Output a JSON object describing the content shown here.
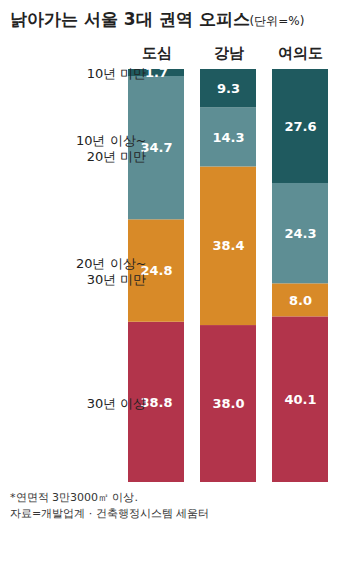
{
  "chart_data": {
    "type": "bar",
    "title": "낡아가는 서울 3대 권역 오피스",
    "subtitle": "(단위=%)",
    "stacked": true,
    "data_labels": true,
    "tick_labels": "x",
    "categories": [
      "도심",
      "강남",
      "여의도"
    ],
    "ylim": [
      0,
      100
    ],
    "series": [
      {
        "name": "10년 미만",
        "color": "#1f5a5f",
        "values": [
          1.7,
          9.3,
          27.6
        ],
        "value_labels": [
          "1.7",
          "9.3",
          "27.6"
        ]
      },
      {
        "name": "10년 이상~20년 미만",
        "color": "#5e8e94",
        "values": [
          34.7,
          14.3,
          24.3
        ],
        "value_labels": [
          "34.7",
          "14.3",
          "24.3"
        ]
      },
      {
        "name": "20년 이상~30년 미만",
        "color": "#d88a28",
        "values": [
          24.8,
          38.4,
          8.0
        ],
        "value_labels": [
          "24.8",
          "38.4",
          "8.0"
        ]
      },
      {
        "name": "30년 이상",
        "color": "#b2344b",
        "values": [
          38.8,
          38.0,
          40.1
        ],
        "value_labels": [
          "38.8",
          "38.0",
          "40.1"
        ]
      }
    ],
    "notes": [
      "*연면적 3만3000㎡ 이상.",
      "자료=개발업계 · 건축행정시스템 세움터"
    ]
  }
}
